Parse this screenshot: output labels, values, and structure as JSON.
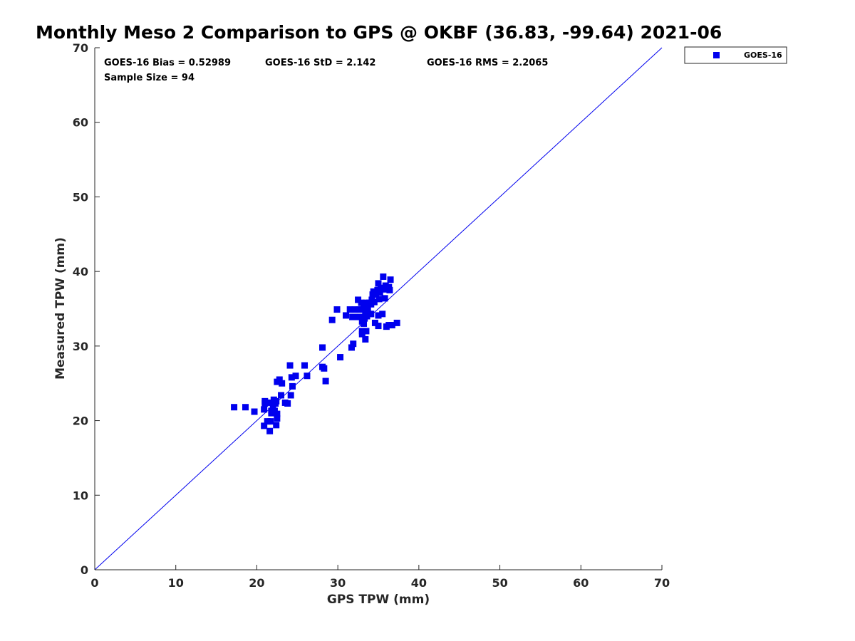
{
  "chart_data": {
    "type": "scatter",
    "title": "Monthly Meso 2 Comparison to GPS @ OKBF (36.83, -99.64) 2021-06",
    "xlabel": "GPS TPW (mm)",
    "ylabel": "Measured TPW (mm)",
    "xlim": [
      0,
      70
    ],
    "ylim": [
      0,
      70
    ],
    "xticks": [
      "0",
      "10",
      "20",
      "30",
      "40",
      "50",
      "60",
      "70"
    ],
    "yticks": [
      "0",
      "10",
      "20",
      "30",
      "40",
      "50",
      "60",
      "70"
    ],
    "grid": false,
    "legend_position": "top-right outside",
    "reference_line": {
      "from": [
        0,
        0
      ],
      "to": [
        70,
        70
      ],
      "color": "#0000ee"
    },
    "stats": {
      "bias": "GOES-16 Bias = 0.52989",
      "std": "GOES-16 StD = 2.142",
      "rms": "GOES-16 RMS = 2.2065",
      "sample_size": "Sample Size = 94"
    },
    "series": [
      {
        "name": "GOES-16",
        "color": "#0000ee",
        "marker": "square",
        "points": [
          [
            17.2,
            21.8
          ],
          [
            18.6,
            21.8
          ],
          [
            19.7,
            21.2
          ],
          [
            20.9,
            19.3
          ],
          [
            20.9,
            21.5
          ],
          [
            21.0,
            22.3
          ],
          [
            21.0,
            22.6
          ],
          [
            21.3,
            19.9
          ],
          [
            21.5,
            22.4
          ],
          [
            21.6,
            18.6
          ],
          [
            21.7,
            19.9
          ],
          [
            21.8,
            21.3
          ],
          [
            22.0,
            22.1
          ],
          [
            22.1,
            22.8
          ],
          [
            22.2,
            21.3
          ],
          [
            22.3,
            22.3
          ],
          [
            22.4,
            19.4
          ],
          [
            22.4,
            22.6
          ],
          [
            22.5,
            20.3
          ],
          [
            22.5,
            20.9
          ],
          [
            22.5,
            25.2
          ],
          [
            22.8,
            25.5
          ],
          [
            23.0,
            23.4
          ],
          [
            23.1,
            25.0
          ],
          [
            23.5,
            22.4
          ],
          [
            23.8,
            22.3
          ],
          [
            24.1,
            27.4
          ],
          [
            24.2,
            23.4
          ],
          [
            24.3,
            25.8
          ],
          [
            24.4,
            24.6
          ],
          [
            24.8,
            26.0
          ],
          [
            25.9,
            27.4
          ],
          [
            26.2,
            26.0
          ],
          [
            28.1,
            27.2
          ],
          [
            28.1,
            29.8
          ],
          [
            28.3,
            27.0
          ],
          [
            28.5,
            25.3
          ],
          [
            29.3,
            33.5
          ],
          [
            29.9,
            34.9
          ],
          [
            30.3,
            28.5
          ],
          [
            31.0,
            34.1
          ],
          [
            31.5,
            34.9
          ],
          [
            31.7,
            29.8
          ],
          [
            31.8,
            33.9
          ],
          [
            31.9,
            30.3
          ],
          [
            32.1,
            34.9
          ],
          [
            32.3,
            33.9
          ],
          [
            32.5,
            36.2
          ],
          [
            32.6,
            34.9
          ],
          [
            32.8,
            33.9
          ],
          [
            32.9,
            35.8
          ],
          [
            33.0,
            31.6
          ],
          [
            33.0,
            32.0
          ],
          [
            33.0,
            33.3
          ],
          [
            33.1,
            34.9
          ],
          [
            33.2,
            35.3
          ],
          [
            33.3,
            33.7
          ],
          [
            33.4,
            30.9
          ],
          [
            33.4,
            34.5
          ],
          [
            33.5,
            32.0
          ],
          [
            33.5,
            35.8
          ],
          [
            33.6,
            34.0
          ],
          [
            33.7,
            35.1
          ],
          [
            33.9,
            35.8
          ],
          [
            34.0,
            34.3
          ],
          [
            34.1,
            35.6
          ],
          [
            34.2,
            36.2
          ],
          [
            34.3,
            36.9
          ],
          [
            34.4,
            37.3
          ],
          [
            34.5,
            35.9
          ],
          [
            34.6,
            33.1
          ],
          [
            34.7,
            37.0
          ],
          [
            34.9,
            37.5
          ],
          [
            35.0,
            32.7
          ],
          [
            35.0,
            34.1
          ],
          [
            35.0,
            38.4
          ],
          [
            35.1,
            36.3
          ],
          [
            35.2,
            37.2
          ],
          [
            35.3,
            37.8
          ],
          [
            35.5,
            34.3
          ],
          [
            35.6,
            39.3
          ],
          [
            35.7,
            37.6
          ],
          [
            35.8,
            36.4
          ],
          [
            35.9,
            38.1
          ],
          [
            36.0,
            32.6
          ],
          [
            36.3,
            37.9
          ],
          [
            36.3,
            32.8
          ],
          [
            36.4,
            37.5
          ],
          [
            36.5,
            38.9
          ],
          [
            36.7,
            32.8
          ],
          [
            37.3,
            33.1
          ],
          [
            34.1,
            34.3
          ],
          [
            33.2,
            33.0
          ],
          [
            21.8,
            21.0
          ]
        ]
      }
    ]
  }
}
